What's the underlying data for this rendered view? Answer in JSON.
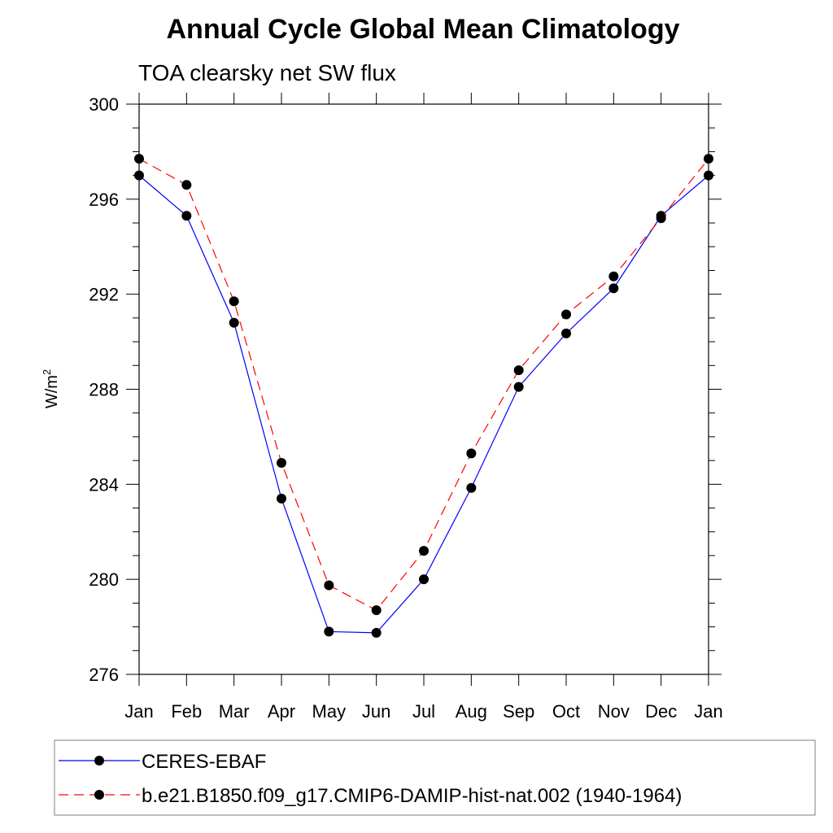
{
  "chart_data": {
    "type": "line",
    "title": "Annual Cycle Global Mean Climatology",
    "subtitle": "TOA clearsky net SW flux",
    "ylabel": "W/m",
    "ylabel_sup": "2",
    "xlabel": "",
    "categories": [
      "Jan",
      "Feb",
      "Mar",
      "Apr",
      "May",
      "Jun",
      "Jul",
      "Aug",
      "Sep",
      "Oct",
      "Nov",
      "Dec",
      "Jan"
    ],
    "ylim": [
      276,
      300
    ],
    "yticks": [
      276,
      280,
      284,
      288,
      292,
      296,
      300
    ],
    "grid": false,
    "legend_position": "bottom",
    "series": [
      {
        "name": "CERES-EBAF",
        "color": "#0000ff",
        "dash": "solid",
        "marker": "circle",
        "values": [
          297.0,
          295.3,
          290.8,
          283.4,
          277.8,
          277.75,
          280.0,
          283.85,
          288.1,
          290.35,
          292.25,
          295.3,
          297.0
        ]
      },
      {
        "name": "b.e21.B1850.f09_g17.CMIP6-DAMIP-hist-nat.002 (1940-1964)",
        "color": "#ff0000",
        "dash": "dashed",
        "marker": "circle",
        "values": [
          297.7,
          296.6,
          291.7,
          284.9,
          279.75,
          278.7,
          281.2,
          285.3,
          288.8,
          291.15,
          292.75,
          295.2,
          297.7
        ]
      }
    ]
  }
}
